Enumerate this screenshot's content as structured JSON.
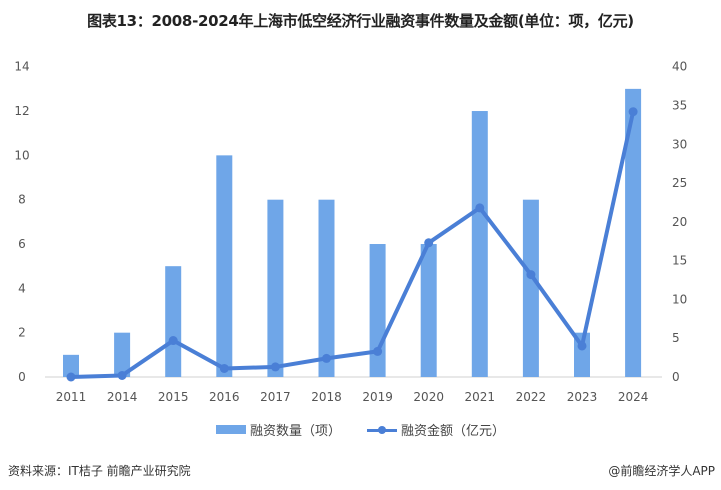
{
  "title": "图表13：2008-2024年上海市低空经济行业融资事件数量及金额(单位：项，亿元)",
  "legend": {
    "bar_label": "融资数量（项）",
    "line_label": "融资金额（亿元）"
  },
  "footer": {
    "source": "资料来源：IT桔子 前瞻产业研究院",
    "brand": "@前瞻经济学人APP"
  },
  "watermark": "前瞻产业研究院",
  "colors": {
    "bar": "#6fa6e8",
    "line": "#4a7fd6"
  },
  "axes": {
    "left_ticks": [
      "0",
      "2",
      "4",
      "6",
      "8",
      "10",
      "12",
      "14"
    ],
    "right_ticks": [
      "0",
      "5",
      "10",
      "15",
      "20",
      "25",
      "30",
      "35",
      "40"
    ]
  },
  "chart_data": {
    "type": "bar+line",
    "title": "图表13：2008-2024年上海市低空经济行业融资事件数量及金额(单位：项，亿元)",
    "categories": [
      "2011",
      "2014",
      "2015",
      "2016",
      "2017",
      "2018",
      "2019",
      "2020",
      "2021",
      "2022",
      "2023",
      "2024"
    ],
    "series": [
      {
        "name": "融资数量（项）",
        "type": "bar",
        "axis": "left",
        "values": [
          1,
          2,
          5,
          10,
          8,
          8,
          6,
          6,
          12,
          8,
          2,
          13
        ]
      },
      {
        "name": "融资金额（亿元）",
        "type": "line",
        "axis": "right",
        "values": [
          0.0,
          0.2,
          4.7,
          1.1,
          1.3,
          2.4,
          3.3,
          17.3,
          21.8,
          13.2,
          4.0,
          34.2
        ]
      }
    ],
    "ylim_left": [
      0,
      14
    ],
    "ylim_right": [
      0,
      40
    ],
    "xlabel": "",
    "ylabel": "",
    "grid": false,
    "legend_position": "bottom"
  }
}
